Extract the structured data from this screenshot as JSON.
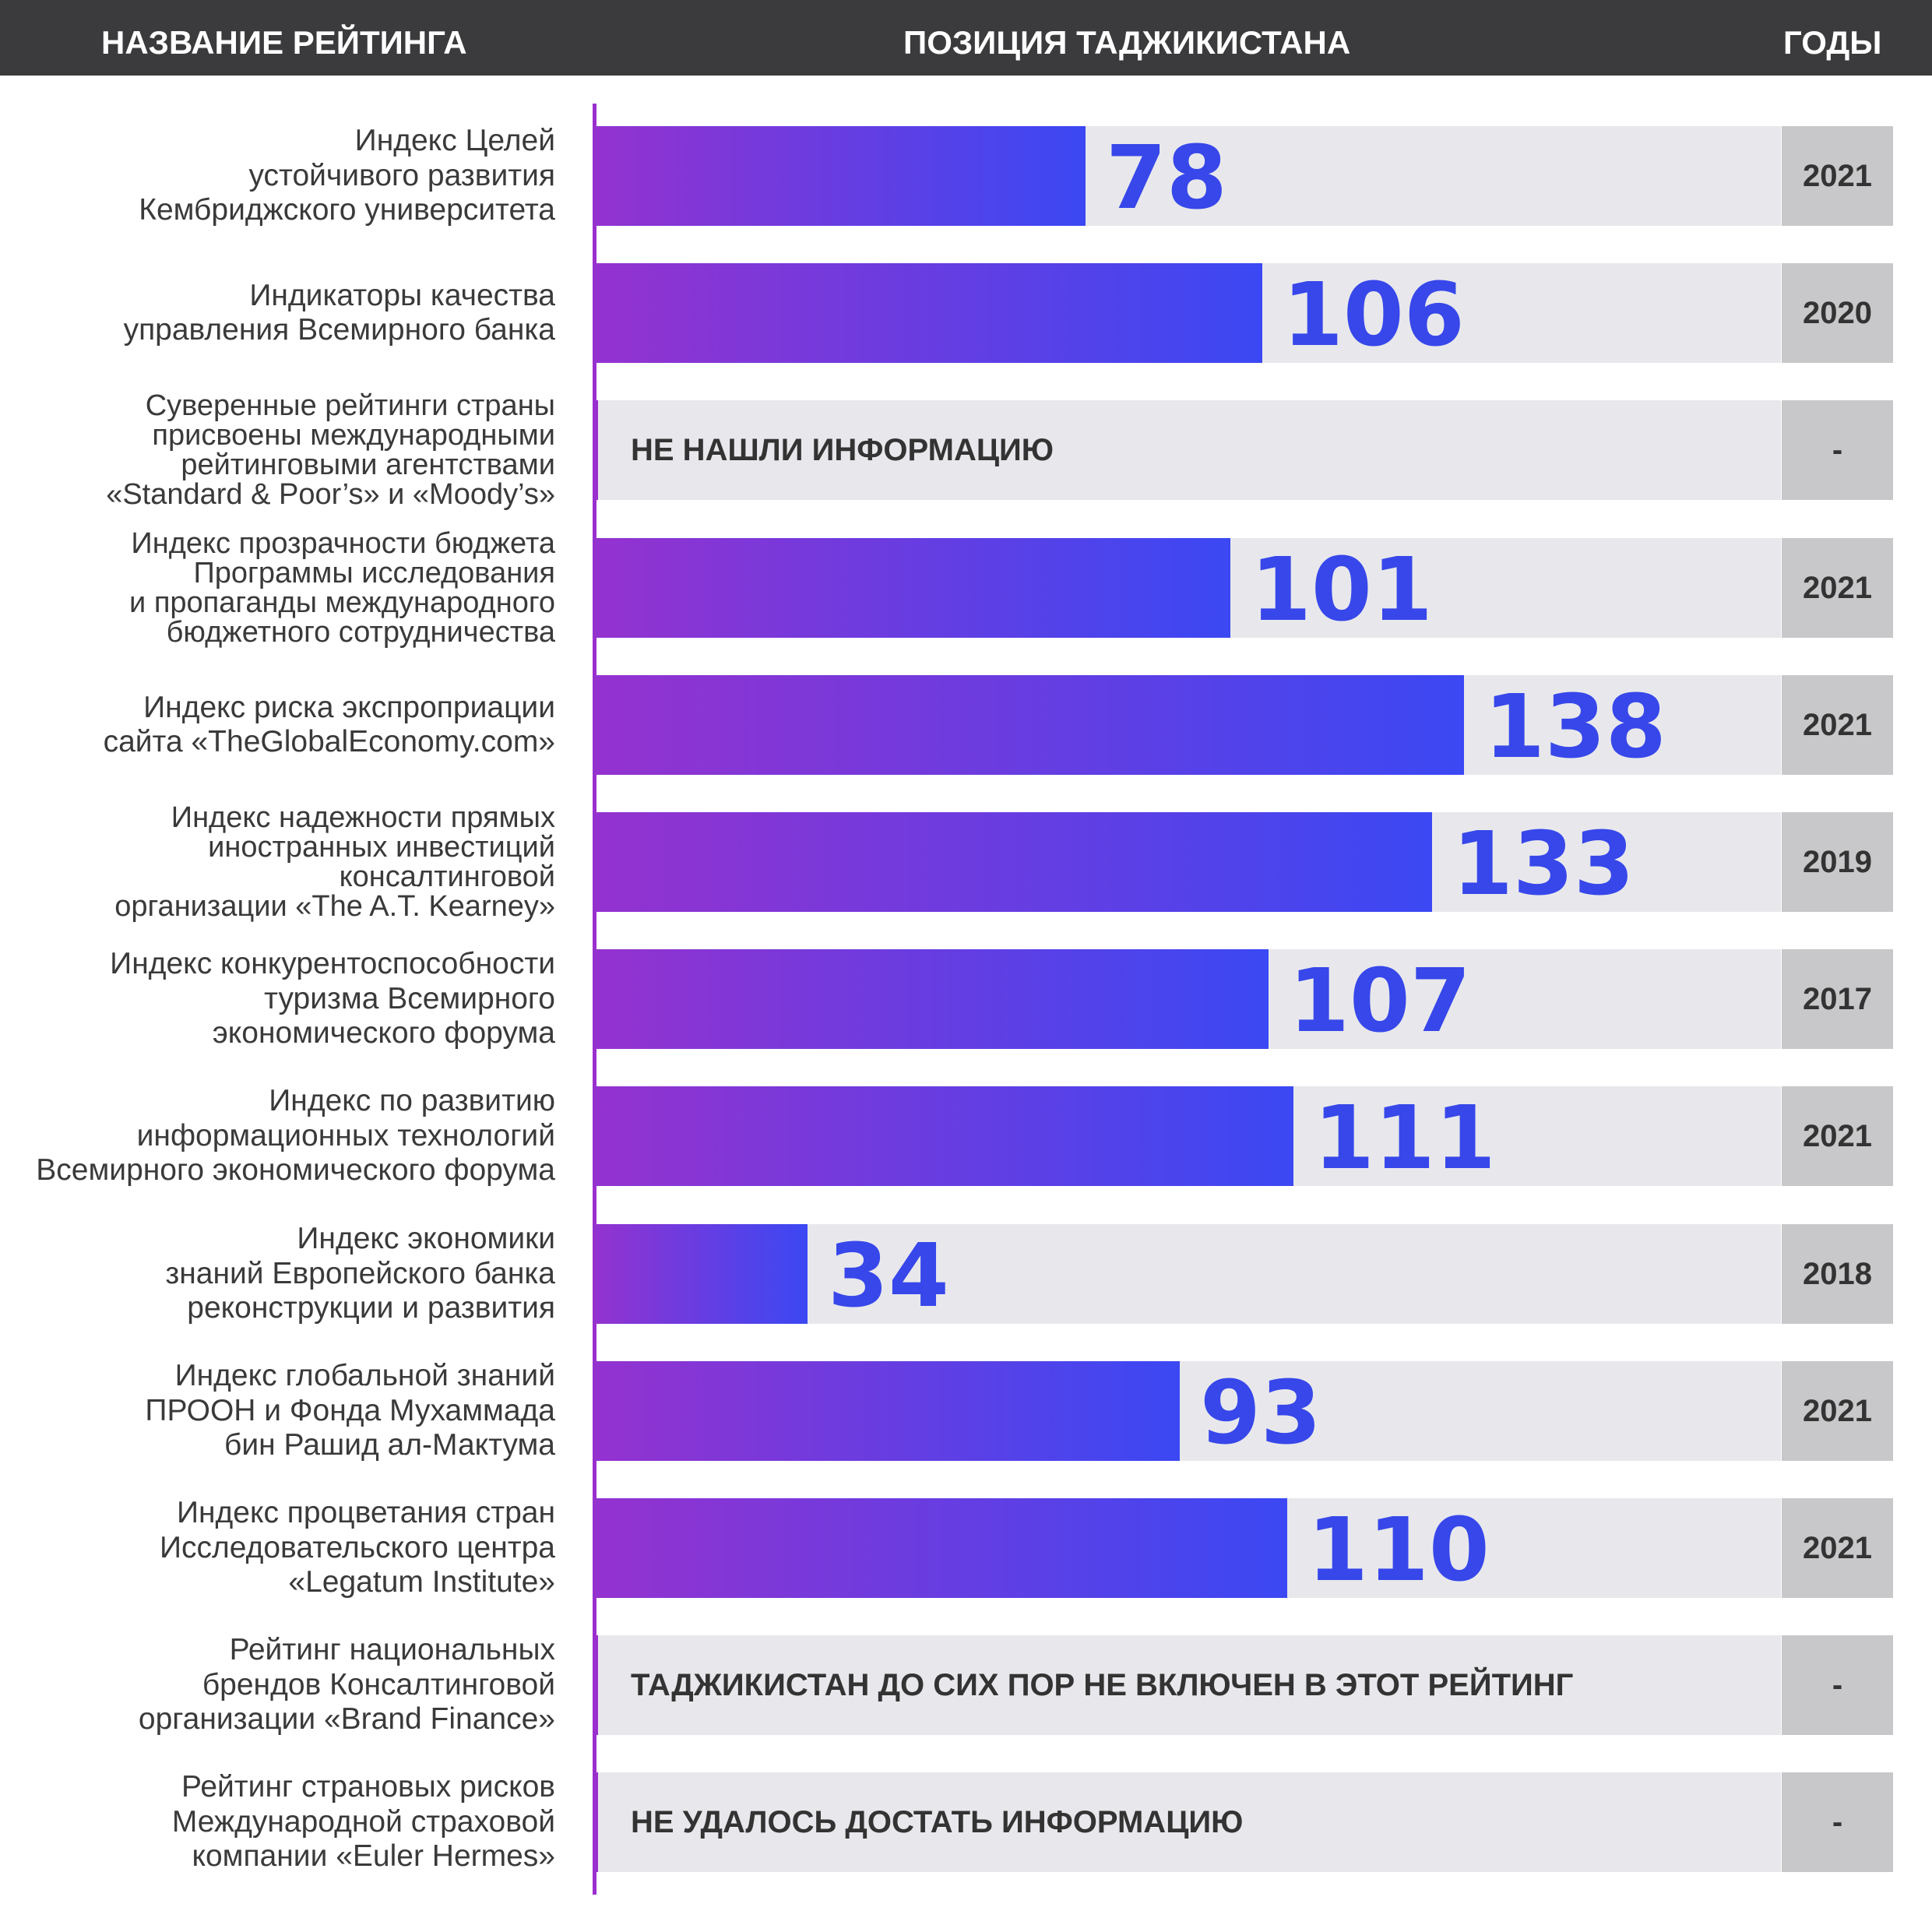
{
  "header": {
    "name": "НАЗВАНИЕ РЕЙТИНГА",
    "position": "ПОЗИЦИЯ ТАДЖИКИСТАНА",
    "years": "ГОДЫ"
  },
  "chart_data": {
    "type": "bar",
    "orientation": "horizontal",
    "xlabel": "ПОЗИЦИЯ ТАДЖИКИСТАНА",
    "xlim": [
      0,
      213
    ],
    "rows": [
      {
        "label": "Индекс Целей\nустойчивого развития\nКембриджского университета",
        "value": 78,
        "note": null,
        "year": "2021"
      },
      {
        "label": "Индикаторы качества\nуправления Всемирного банка",
        "value": 106,
        "note": null,
        "year": "2020"
      },
      {
        "label": "Суверенные рейтинги страны\nприсвоены международными\nрейтинговыми агентствами\n«Standard & Poor’s» и «Moody’s»",
        "value": null,
        "note": "НЕ НАШЛИ ИНФОРМАЦИЮ",
        "year": "-"
      },
      {
        "label": "Индекс прозрачности бюджета\nПрограммы исследования\nи пропаганды международного\nбюджетного сотрудничества",
        "value": 101,
        "note": null,
        "year": "2021"
      },
      {
        "label": "Индекс риска экспроприации\nсайта «TheGlobalEconomy.com»",
        "value": 138,
        "note": null,
        "year": "2021"
      },
      {
        "label": "Индекс надежности прямых\nиностранных инвестиций\nконсалтинговой\nорганизации «The A.T. Kearney»",
        "value": 133,
        "note": null,
        "year": "2019"
      },
      {
        "label": "Индекс конкурентоспособности\nтуризма Всемирного\nэкономического форума",
        "value": 107,
        "note": null,
        "year": "2017"
      },
      {
        "label": "Индекс по развитию\nинформационных технологий\nВсемирного экономического форума",
        "value": 111,
        "note": null,
        "year": "2021"
      },
      {
        "label": "Индекс экономики\nзнаний Европейского банка\nреконструкции и развития",
        "value": 34,
        "note": null,
        "year": "2018"
      },
      {
        "label": "Индекс глобальной знаний\nПРООН и Фонда Мухаммада\nбин Рашид ал-Мактума",
        "value": 93,
        "note": null,
        "year": "2021"
      },
      {
        "label": "Индекс процветания стран\nИсследовательского центра\n«Legatum Institute»",
        "value": 110,
        "note": null,
        "year": "2021"
      },
      {
        "label": "Рейтинг национальных\nбрендов Консалтинговой\nорганизации «Brand Finance»",
        "value": null,
        "note": "ТАДЖИКИСТАН ДО СИХ ПОР НЕ ВКЛЮЧЕН В ЭТОТ РЕЙТИНГ",
        "year": "-"
      },
      {
        "label": "Рейтинг страновых рисков\nМеждународной страховой\nкомпании «Euler Hermes»",
        "value": null,
        "note": "НЕ УДАЛОСЬ ДОСТАТЬ ИНФОРМАЦИЮ",
        "year": "-"
      }
    ]
  }
}
